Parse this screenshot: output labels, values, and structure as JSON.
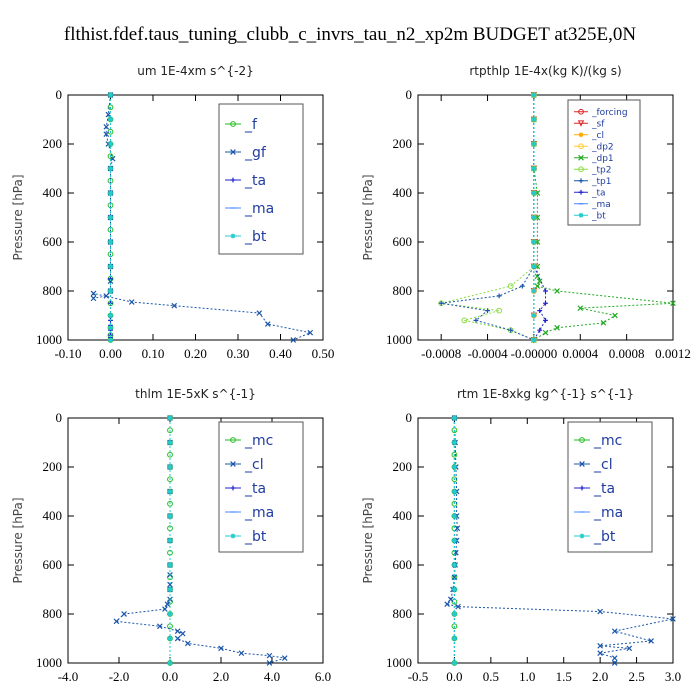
{
  "suptitle": "flthist.fdef.taus_tuning_clubb_c_invrs_tau_n2_xp2m  BUDGET at325E,0N",
  "chart_data": [
    {
      "type": "line",
      "title": "um  1E-4xm s^{-2}",
      "ylabel": "Pressure [hPa]",
      "xlim": [
        -0.1,
        0.5
      ],
      "ylim": [
        1000,
        0
      ],
      "xticks": [
        "-0.10",
        "0.00",
        "0.10",
        "0.20",
        "0.30",
        "0.40",
        "0.50"
      ],
      "xtick_values": [
        -0.1,
        0.0,
        0.1,
        0.2,
        0.3,
        0.4,
        0.5
      ],
      "yticks": [
        "0",
        "200",
        "400",
        "600",
        "800",
        "1000"
      ],
      "ytick_values": [
        0,
        200,
        400,
        600,
        800,
        1000
      ],
      "legend_size": "large",
      "series": [
        {
          "name": "_f",
          "color": "#22bb22",
          "marker": "o",
          "x": [
            0,
            0,
            0,
            0,
            0,
            0,
            0,
            0,
            0,
            0,
            0,
            0,
            0,
            0,
            0,
            0,
            0,
            0,
            0,
            0,
            0,
            0
          ],
          "y": [
            0,
            50,
            100,
            150,
            200,
            250,
            300,
            350,
            400,
            450,
            500,
            550,
            600,
            650,
            700,
            750,
            800,
            850,
            900,
            950,
            980,
            1000
          ]
        },
        {
          "name": "_gf",
          "color": "#1a55aa",
          "marker": "x",
          "x": [
            0,
            -0.005,
            -0.01,
            -0.01,
            -0.005,
            0.005,
            0,
            0,
            0,
            0,
            0,
            0,
            0,
            -0.01,
            -0.04,
            -0.04,
            0.05,
            0.15,
            0.35,
            0.37,
            0.47,
            0.43
          ],
          "y": [
            0,
            80,
            130,
            160,
            200,
            260,
            300,
            400,
            500,
            600,
            700,
            760,
            800,
            820,
            830,
            810,
            845,
            860,
            890,
            935,
            970,
            1000
          ]
        },
        {
          "name": "_ta",
          "color": "#2222cc",
          "marker": "+",
          "x": [
            0,
            0,
            0,
            0,
            0,
            0,
            0,
            0,
            0,
            0,
            0,
            0,
            0,
            0,
            0,
            0,
            0,
            0
          ],
          "y": [
            0,
            100,
            200,
            300,
            400,
            500,
            600,
            700,
            750,
            800,
            850,
            900,
            920,
            940,
            960,
            980,
            990,
            1000
          ]
        },
        {
          "name": "_ma",
          "color": "#4488ff",
          "marker": "-",
          "x": [
            0,
            0,
            0,
            0,
            0,
            0,
            0,
            0,
            0,
            0,
            0,
            0
          ],
          "y": [
            0,
            100,
            200,
            300,
            400,
            500,
            600,
            700,
            800,
            900,
            950,
            1000
          ]
        },
        {
          "name": "_bt",
          "color": "#22cccc",
          "marker": "*",
          "x": [
            0,
            0,
            0,
            0,
            0,
            0,
            0,
            0,
            0,
            0,
            0,
            0
          ],
          "y": [
            0,
            100,
            200,
            300,
            400,
            500,
            600,
            700,
            800,
            900,
            950,
            1000
          ]
        }
      ]
    },
    {
      "type": "line",
      "title": "rtpthlp  1E-4x(kg K)/(kg s)",
      "ylabel": "Pressure [hPa]",
      "xlim": [
        -0.001,
        0.0012
      ],
      "ylim": [
        1000,
        0
      ],
      "xticks": [
        "-0.0008",
        "-0.0004",
        "-0.00000",
        "0.0004",
        "0.0008",
        "0.0012"
      ],
      "xtick_values": [
        -0.0008,
        -0.0004,
        0.0,
        0.0004,
        0.0008,
        0.0012
      ],
      "yticks": [
        "0",
        "200",
        "400",
        "600",
        "800",
        "1000"
      ],
      "ytick_values": [
        0,
        200,
        400,
        600,
        800,
        1000
      ],
      "legend_size": "small",
      "series": [
        {
          "name": "_forcing",
          "color": "#dd2222",
          "marker": "o",
          "x": [
            0,
            0,
            0,
            0,
            0,
            0,
            0,
            0,
            0,
            0,
            0
          ],
          "y": [
            0,
            100,
            200,
            300,
            400,
            500,
            600,
            700,
            800,
            900,
            1000
          ]
        },
        {
          "name": "_sf",
          "color": "#dd2222",
          "marker": "v",
          "x": [
            0,
            0,
            0,
            0,
            0,
            0,
            0,
            0,
            0,
            0,
            0
          ],
          "y": [
            0,
            100,
            200,
            300,
            400,
            500,
            600,
            700,
            800,
            900,
            1000
          ]
        },
        {
          "name": "_cl",
          "color": "#ffaa00",
          "marker": "*",
          "x": [
            0,
            0,
            0,
            0,
            0,
            0,
            0,
            0,
            0,
            0,
            0
          ],
          "y": [
            0,
            100,
            200,
            300,
            400,
            500,
            600,
            700,
            800,
            900,
            1000
          ]
        },
        {
          "name": "_dp2",
          "color": "#ffcc33",
          "marker": "o",
          "x": [
            0,
            0,
            0,
            0,
            0,
            0,
            0,
            0,
            0,
            0,
            0
          ],
          "y": [
            0,
            100,
            200,
            300,
            400,
            500,
            600,
            700,
            800,
            900,
            1000
          ]
        },
        {
          "name": "_dp1",
          "color": "#22aa22",
          "marker": "x",
          "x": [
            0,
            0,
            0,
            0,
            3e-05,
            3e-05,
            3e-05,
            3e-05,
            3e-05,
            5e-05,
            3e-05,
            0.0002,
            0.0012,
            0.0004,
            0.0007,
            0.0006,
            0.0002,
            0.0001,
            0
          ],
          "y": [
            0,
            100,
            200,
            300,
            400,
            500,
            600,
            700,
            740,
            760,
            780,
            800,
            850,
            870,
            900,
            930,
            950,
            970,
            1000
          ]
        },
        {
          "name": "_tp2",
          "color": "#88dd44",
          "marker": "o",
          "x": [
            0,
            0,
            0,
            0,
            0,
            0,
            0,
            0,
            -0.0002,
            -0.0008,
            -0.0003,
            -0.0006,
            -0.0002,
            0
          ],
          "y": [
            0,
            100,
            200,
            300,
            400,
            500,
            600,
            700,
            780,
            850,
            880,
            920,
            960,
            1000
          ]
        },
        {
          "name": "_tp1",
          "color": "#1a55aa",
          "marker": "+",
          "x": [
            0,
            0,
            0,
            0,
            0,
            0,
            0,
            0,
            -0.0001,
            -0.0003,
            -0.0008,
            -0.0004,
            -0.0005,
            -0.0002,
            0
          ],
          "y": [
            0,
            100,
            200,
            300,
            400,
            500,
            600,
            700,
            780,
            820,
            850,
            880,
            920,
            960,
            1000
          ]
        },
        {
          "name": "_ta",
          "color": "#2222cc",
          "marker": "+",
          "x": [
            0,
            0,
            0,
            0,
            0,
            0,
            0,
            0,
            0.0001,
            0.0001,
            5e-05,
            0.0001,
            5e-05,
            0
          ],
          "y": [
            0,
            100,
            200,
            300,
            400,
            500,
            600,
            700,
            800,
            850,
            880,
            920,
            960,
            1000
          ]
        },
        {
          "name": "_ma",
          "color": "#4488ff",
          "marker": "-",
          "x": [
            0,
            0,
            0,
            0,
            0,
            0,
            0,
            0,
            0,
            0,
            0
          ],
          "y": [
            0,
            100,
            200,
            300,
            400,
            500,
            600,
            700,
            800,
            900,
            1000
          ]
        },
        {
          "name": "_bt",
          "color": "#22cccc",
          "marker": "*",
          "x": [
            0,
            0,
            0,
            0,
            0,
            0,
            0,
            0,
            0,
            0,
            0
          ],
          "y": [
            0,
            100,
            200,
            300,
            400,
            500,
            600,
            700,
            800,
            900,
            1000
          ]
        }
      ]
    },
    {
      "type": "line",
      "title": "thlm  1E-5xK s^{-1}",
      "ylabel": "Pressure [hPa]",
      "xlim": [
        -4.0,
        6.0
      ],
      "ylim": [
        1000,
        0
      ],
      "xticks": [
        "-4.0",
        "-2.0",
        "0.0",
        "2.0",
        "4.0",
        "6.0"
      ],
      "xtick_values": [
        -4.0,
        -2.0,
        0.0,
        2.0,
        4.0,
        6.0
      ],
      "yticks": [
        "0",
        "200",
        "400",
        "600",
        "800",
        "1000"
      ],
      "ytick_values": [
        0,
        200,
        400,
        600,
        800,
        1000
      ],
      "legend_size": "large",
      "series": [
        {
          "name": "_mc",
          "color": "#22bb22",
          "marker": "o",
          "x": [
            0,
            0,
            0,
            0,
            0,
            0,
            0,
            0,
            0,
            0,
            0,
            0,
            0,
            0,
            0,
            0,
            0,
            0,
            0,
            0
          ],
          "y": [
            0,
            50,
            100,
            150,
            200,
            250,
            300,
            350,
            400,
            450,
            500,
            550,
            600,
            650,
            700,
            750,
            800,
            850,
            900,
            1000
          ]
        },
        {
          "name": "_cl",
          "color": "#1a55aa",
          "marker": "x",
          "x": [
            0,
            0,
            0,
            0,
            0,
            0,
            0,
            0,
            0,
            0,
            0,
            -0.1,
            -0.2,
            -1.8,
            -2.1,
            -0.4,
            0.3,
            0.5,
            0.3,
            0.7,
            2.0,
            2.8,
            3.9,
            4.5,
            3.9
          ],
          "y": [
            0,
            100,
            200,
            300,
            400,
            500,
            600,
            640,
            680,
            700,
            740,
            760,
            780,
            800,
            830,
            850,
            870,
            880,
            900,
            920,
            940,
            960,
            970,
            980,
            1000
          ]
        },
        {
          "name": "_ta",
          "color": "#2222cc",
          "marker": "+",
          "x": [
            0,
            0,
            0,
            0,
            0,
            0,
            0,
            0,
            0,
            0,
            0
          ],
          "y": [
            0,
            100,
            200,
            300,
            400,
            500,
            600,
            700,
            800,
            900,
            1000
          ]
        },
        {
          "name": "_ma",
          "color": "#4488ff",
          "marker": "-",
          "x": [
            0,
            0,
            0,
            0,
            0,
            0,
            0,
            0,
            0,
            0,
            0
          ],
          "y": [
            0,
            100,
            200,
            300,
            400,
            500,
            600,
            700,
            800,
            900,
            1000
          ]
        },
        {
          "name": "_bt",
          "color": "#22cccc",
          "marker": "*",
          "x": [
            0,
            0,
            0,
            0,
            0,
            0,
            0,
            0,
            0,
            0,
            0
          ],
          "y": [
            0,
            100,
            200,
            300,
            400,
            500,
            600,
            700,
            800,
            900,
            1000
          ]
        }
      ]
    },
    {
      "type": "line",
      "title": "rtm  1E-8xkg kg^{-1} s^{-1}",
      "ylabel": "Pressure [hPa]",
      "xlim": [
        -0.5,
        3.0
      ],
      "ylim": [
        1000,
        0
      ],
      "xticks": [
        "-0.5",
        "0.0",
        "0.5",
        "1.0",
        "1.5",
        "2.0",
        "2.5",
        "3.0"
      ],
      "xtick_values": [
        -0.5,
        0.0,
        0.5,
        1.0,
        1.5,
        2.0,
        2.5,
        3.0
      ],
      "yticks": [
        "0",
        "200",
        "400",
        "600",
        "800",
        "1000"
      ],
      "ytick_values": [
        0,
        200,
        400,
        600,
        800,
        1000
      ],
      "legend_size": "large",
      "series": [
        {
          "name": "_mc",
          "color": "#22bb22",
          "marker": "o",
          "x": [
            0,
            0,
            0,
            0,
            0,
            0,
            0,
            0,
            0,
            0,
            0,
            0,
            0,
            0,
            0,
            0,
            0,
            0,
            0,
            0
          ],
          "y": [
            0,
            50,
            100,
            150,
            200,
            250,
            300,
            350,
            400,
            450,
            500,
            550,
            600,
            650,
            700,
            750,
            800,
            850,
            900,
            1000
          ]
        },
        {
          "name": "_cl",
          "color": "#1a55aa",
          "marker": "x",
          "x": [
            0,
            0.01,
            0.02,
            0.03,
            0.03,
            0.04,
            0.03,
            0.02,
            0.01,
            0,
            -0.02,
            -0.05,
            -0.1,
            0.05,
            2.0,
            3.0,
            2.2,
            2.7,
            2.0,
            2.4,
            2.0,
            2.2,
            2.2
          ],
          "y": [
            0,
            100,
            200,
            300,
            400,
            450,
            500,
            550,
            600,
            650,
            700,
            740,
            760,
            770,
            790,
            820,
            870,
            910,
            930,
            940,
            960,
            980,
            1000
          ]
        },
        {
          "name": "_ta",
          "color": "#2222cc",
          "marker": "+",
          "x": [
            0,
            0,
            0,
            0,
            0,
            0,
            0,
            0,
            0,
            0,
            0
          ],
          "y": [
            0,
            100,
            200,
            300,
            400,
            500,
            600,
            700,
            800,
            900,
            1000
          ]
        },
        {
          "name": "_ma",
          "color": "#4488ff",
          "marker": "-",
          "x": [
            0,
            0,
            0,
            0,
            0,
            0,
            0,
            0,
            0,
            0,
            0
          ],
          "y": [
            0,
            100,
            200,
            300,
            400,
            500,
            600,
            700,
            800,
            900,
            1000
          ]
        },
        {
          "name": "_bt",
          "color": "#22cccc",
          "marker": "*",
          "x": [
            0,
            0,
            0,
            0,
            0,
            0,
            0,
            0,
            0,
            0,
            0
          ],
          "y": [
            0,
            100,
            200,
            300,
            400,
            500,
            600,
            700,
            800,
            900,
            1000
          ]
        }
      ]
    }
  ]
}
